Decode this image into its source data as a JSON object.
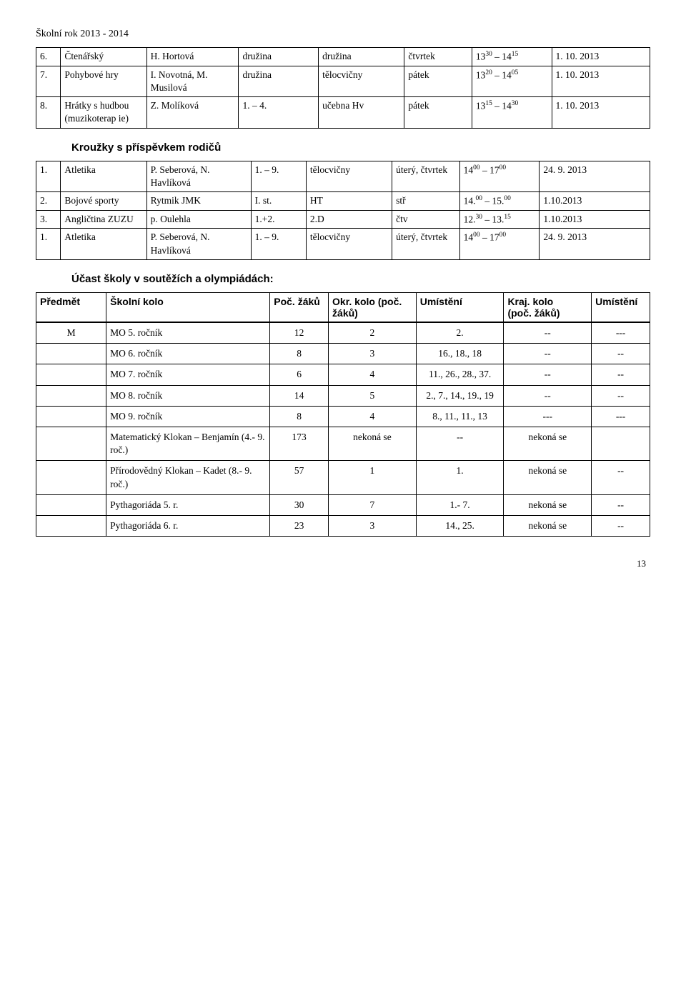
{
  "header": "Školní rok 2013 - 2014",
  "table1": {
    "rows": [
      {
        "n": "6.",
        "name": "Čtenářský",
        "teacher": "H. Hortová",
        "grp": "družina",
        "room": "družina",
        "day": "čtvrtek",
        "time": "13<sup>30</sup> – 14<sup>15</sup>",
        "date": "1. 10. 2013"
      },
      {
        "n": "7.",
        "name": "Pohybové hry",
        "teacher": "I. Novotná, M. Musilová",
        "grp": "družina",
        "room": "tělocvičny",
        "day": "pátek",
        "time": "13<sup>20</sup> – 14<sup>05</sup>",
        "date": "1. 10. 2013"
      },
      {
        "n": "8.",
        "name": "Hrátky s hudbou (muzikoterap ie)",
        "teacher": "Z. Molíková",
        "grp": "1. – 4.",
        "room": "učebna Hv",
        "day": "pátek",
        "time": "13<sup>15</sup> – 14<sup>30</sup>",
        "date": "1. 10. 2013"
      }
    ]
  },
  "section1": "Kroužky s příspěvkem rodičů",
  "table2": {
    "rows": [
      {
        "n": "1.",
        "name": "Atletika",
        "teacher": "P. Seberová, N. Havlíková",
        "grp": "1. – 9.",
        "room": "tělocvičny",
        "day": "úterý, čtvrtek",
        "time": "14<sup>00</sup> – 17<sup>00</sup>",
        "date": "24. 9. 2013"
      },
      {
        "n": "2.",
        "name": "Bojové sporty",
        "teacher": "Rytmik JMK",
        "grp": "I. st.",
        "room": "HT",
        "day": "stř",
        "time": "14.<sup>00</sup> – 15.<sup>00</sup>",
        "date": "1.10.2013"
      },
      {
        "n": "3.",
        "name": "Angličtina ZUZU",
        "teacher": "p. Oulehla",
        "grp": "1.+2.",
        "room": "2.D",
        "day": "čtv",
        "time": "12.<sup>30</sup> – 13.<sup>15</sup>",
        "date": "1.10.2013"
      },
      {
        "n": "1.",
        "name": "Atletika",
        "teacher": "P. Seberová, N. Havlíková",
        "grp": "1. – 9.",
        "room": "tělocvičny",
        "day": "úterý, čtvrtek",
        "time": "14<sup>00</sup> – 17<sup>00</sup>",
        "date": "24. 9. 2013"
      }
    ]
  },
  "section2": "Účast školy v soutěžích a olympiádách:",
  "table3": {
    "headers": {
      "predmet": "Předmět",
      "skolni": "Školní kolo",
      "poc": "Poč. žáků",
      "okr": "Okr. kolo (poč. žáků)",
      "um1": "Umístění",
      "kraj": "Kraj. kolo",
      "krajsub": "(poč. žáků)",
      "um2": "Umístění"
    },
    "rows": [
      {
        "p": "M",
        "s": "MO 5. ročník",
        "pz": "12",
        "ok": "2",
        "u1": "2.",
        "kk": "--",
        "u2": "---"
      },
      {
        "p": "",
        "s": "MO 6. ročník",
        "pz": "8",
        "ok": "3",
        "u1": "16., 18., 18",
        "kk": "--",
        "u2": "--"
      },
      {
        "p": "",
        "s": "MO 7. ročník",
        "pz": "6",
        "ok": "4",
        "u1": "11., 26., 28., 37.",
        "kk": "--",
        "u2": "--"
      },
      {
        "p": "",
        "s": "MO 8. ročník",
        "pz": "14",
        "ok": "5",
        "u1": "2., 7., 14., 19., 19",
        "kk": "--",
        "u2": "--"
      },
      {
        "p": "",
        "s": "MO 9. ročník",
        "pz": "8",
        "ok": "4",
        "u1": "8., 11., 11., 13",
        "kk": "---",
        "u2": "---"
      },
      {
        "p": "",
        "s": "Matematický Klokan – Benjamín (4.- 9. roč.)",
        "pz": "173",
        "ok": "nekoná se",
        "u1": "--",
        "kk": "nekoná se",
        "u2": ""
      },
      {
        "p": "",
        "s": "Přírodovědný Klokan – Kadet (8.- 9. roč.)",
        "pz": "57",
        "ok": "1",
        "u1": "1.",
        "kk": "nekoná se",
        "u2": "--"
      },
      {
        "p": "",
        "s": "Pythagoriáda 5. r.",
        "pz": "30",
        "ok": "7",
        "u1": "1.- 7.",
        "kk": "nekoná se",
        "u2": "--"
      },
      {
        "p": "",
        "s": "Pythagoriáda 6. r.",
        "pz": "23",
        "ok": "3",
        "u1": "14., 25.",
        "kk": "nekoná se",
        "u2": "--"
      }
    ]
  },
  "pagenum": "13"
}
